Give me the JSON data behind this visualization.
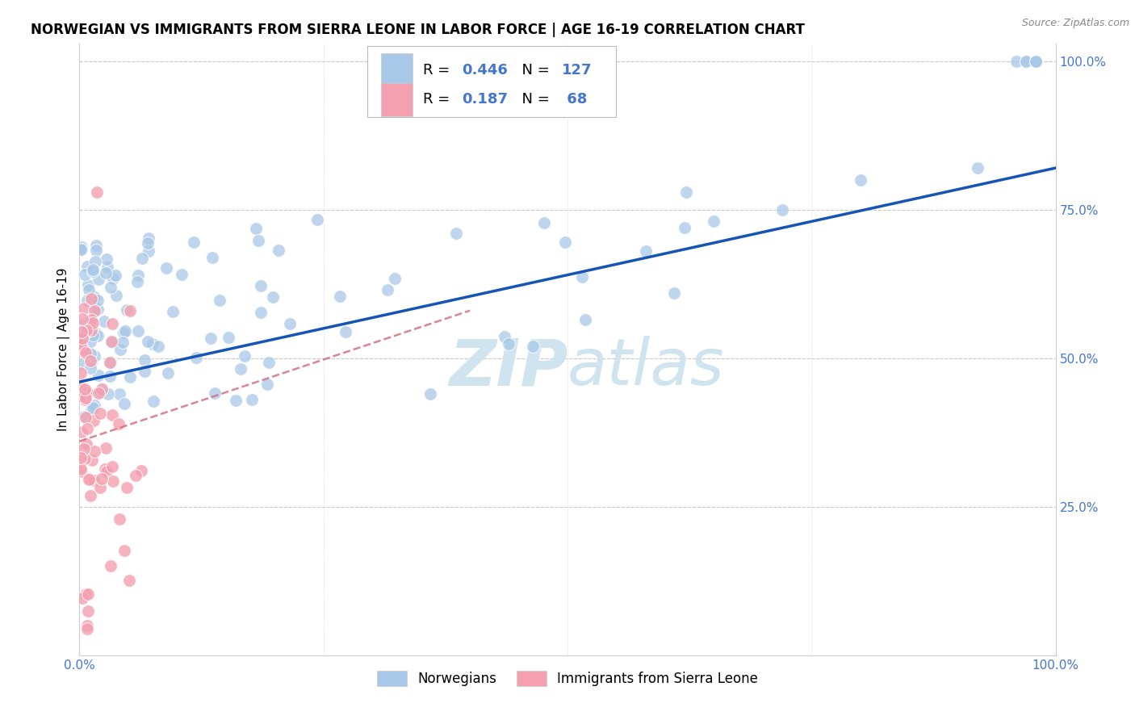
{
  "title": "NORWEGIAN VS IMMIGRANTS FROM SIERRA LEONE IN LABOR FORCE | AGE 16-19 CORRELATION CHART",
  "source": "Source: ZipAtlas.com",
  "ylabel": "In Labor Force | Age 16-19",
  "blue_R": 0.446,
  "blue_N": 127,
  "pink_R": 0.187,
  "pink_N": 68,
  "blue_color": "#a8c8e8",
  "pink_color": "#f4a0b0",
  "blue_line_color": "#1455b5",
  "pink_line_color": "#d47080",
  "grid_color": "#c8c8c8",
  "background_color": "#ffffff",
  "watermark_color": "#d0e4f0",
  "tick_color": "#4477cc"
}
